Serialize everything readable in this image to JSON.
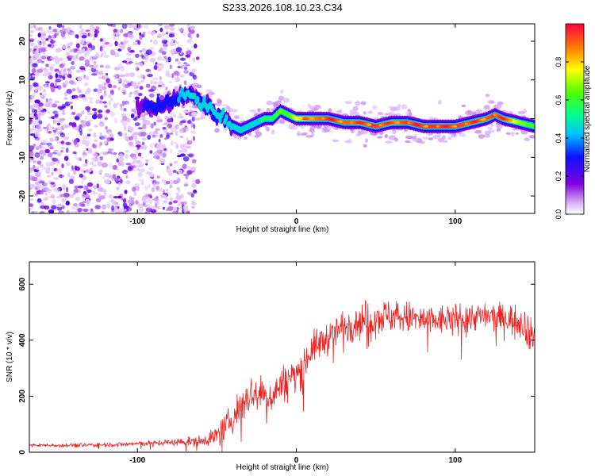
{
  "title": "S233.2026.108.10.23.C34",
  "chart_data": [
    {
      "type": "heatmap",
      "name": "spectrogram",
      "xlabel": "Height of straight line (km)",
      "ylabel": "Frequency (Hz)",
      "xlim": [
        -168,
        150
      ],
      "ylim": [
        -24.5,
        24.5
      ],
      "x_ticks": [
        -100,
        0,
        100
      ],
      "y_ticks": [
        -20,
        -10,
        0,
        10,
        20
      ],
      "colorbar": {
        "label": "Normalized spectral amplitude",
        "range": [
          0.0,
          1.0
        ],
        "ticks": [
          0.0,
          0.2,
          0.4,
          0.6,
          0.8
        ],
        "tick_labels": [
          "0.0",
          "0.2",
          "0.4",
          "0.6",
          "0.8"
        ]
      },
      "ridge": {
        "x": [
          -100,
          -90,
          -80,
          -70,
          -65,
          -60,
          -55,
          -50,
          -45,
          -40,
          -35,
          -30,
          -25,
          -20,
          -15,
          -10,
          -5,
          0,
          10,
          20,
          30,
          40,
          50,
          60,
          70,
          80,
          90,
          100,
          110,
          120,
          125,
          130,
          140,
          150
        ],
        "frequency": [
          3,
          3,
          4,
          6,
          6,
          4,
          3,
          1,
          0,
          -2,
          -3,
          -2,
          -1,
          0,
          0,
          2,
          1,
          0,
          0,
          0,
          -1,
          -1,
          -2,
          -1,
          -1,
          -2,
          -2,
          -2,
          -1,
          0,
          1,
          0,
          -1,
          -2
        ],
        "amplitude": [
          0.25,
          0.3,
          0.35,
          0.45,
          0.5,
          0.45,
          0.45,
          0.5,
          0.45,
          0.45,
          0.45,
          0.5,
          0.5,
          0.55,
          0.55,
          0.65,
          0.6,
          0.75,
          0.85,
          0.95,
          0.9,
          0.9,
          0.95,
          0.85,
          0.95,
          0.95,
          0.95,
          0.95,
          0.9,
          0.9,
          0.95,
          0.9,
          0.7,
          0.6
        ]
      },
      "noise_region_x": [
        -168,
        -62
      ]
    },
    {
      "type": "line",
      "name": "snr",
      "xlabel": "Height of straight line (km)",
      "ylabel": "SNR (10 * v/v)",
      "xlim": [
        -168,
        150
      ],
      "ylim": [
        0,
        680
      ],
      "x_ticks": [
        -100,
        0,
        100
      ],
      "y_ticks": [
        0,
        200,
        400,
        600
      ],
      "series": [
        {
          "name": "SNR",
          "color": "#ee2222",
          "x": [
            -168,
            -140,
            -110,
            -80,
            -60,
            -50,
            -45,
            -40,
            -35,
            -30,
            -25,
            -20,
            -15,
            -10,
            -5,
            0,
            5,
            10,
            15,
            20,
            25,
            30,
            35,
            40,
            50,
            60,
            70,
            80,
            90,
            100,
            110,
            120,
            130,
            140,
            145,
            150
          ],
          "mean": [
            25,
            25,
            28,
            35,
            40,
            60,
            90,
            120,
            170,
            200,
            220,
            200,
            200,
            240,
            260,
            280,
            320,
            370,
            390,
            410,
            430,
            450,
            460,
            470,
            480,
            490,
            480,
            470,
            470,
            480,
            485,
            485,
            480,
            470,
            450,
            380
          ],
          "spread": [
            8,
            10,
            12,
            15,
            25,
            50,
            60,
            70,
            90,
            90,
            90,
            80,
            80,
            90,
            90,
            90,
            90,
            80,
            80,
            80,
            80,
            85,
            90,
            90,
            90,
            85,
            80,
            80,
            75,
            70,
            70,
            70,
            70,
            80,
            90,
            100
          ]
        }
      ]
    }
  ],
  "colors": {
    "spectrogram_low": "#e0c0f8",
    "spectrogram_mid": "#9040e0",
    "snr_line": "#ee2222"
  }
}
